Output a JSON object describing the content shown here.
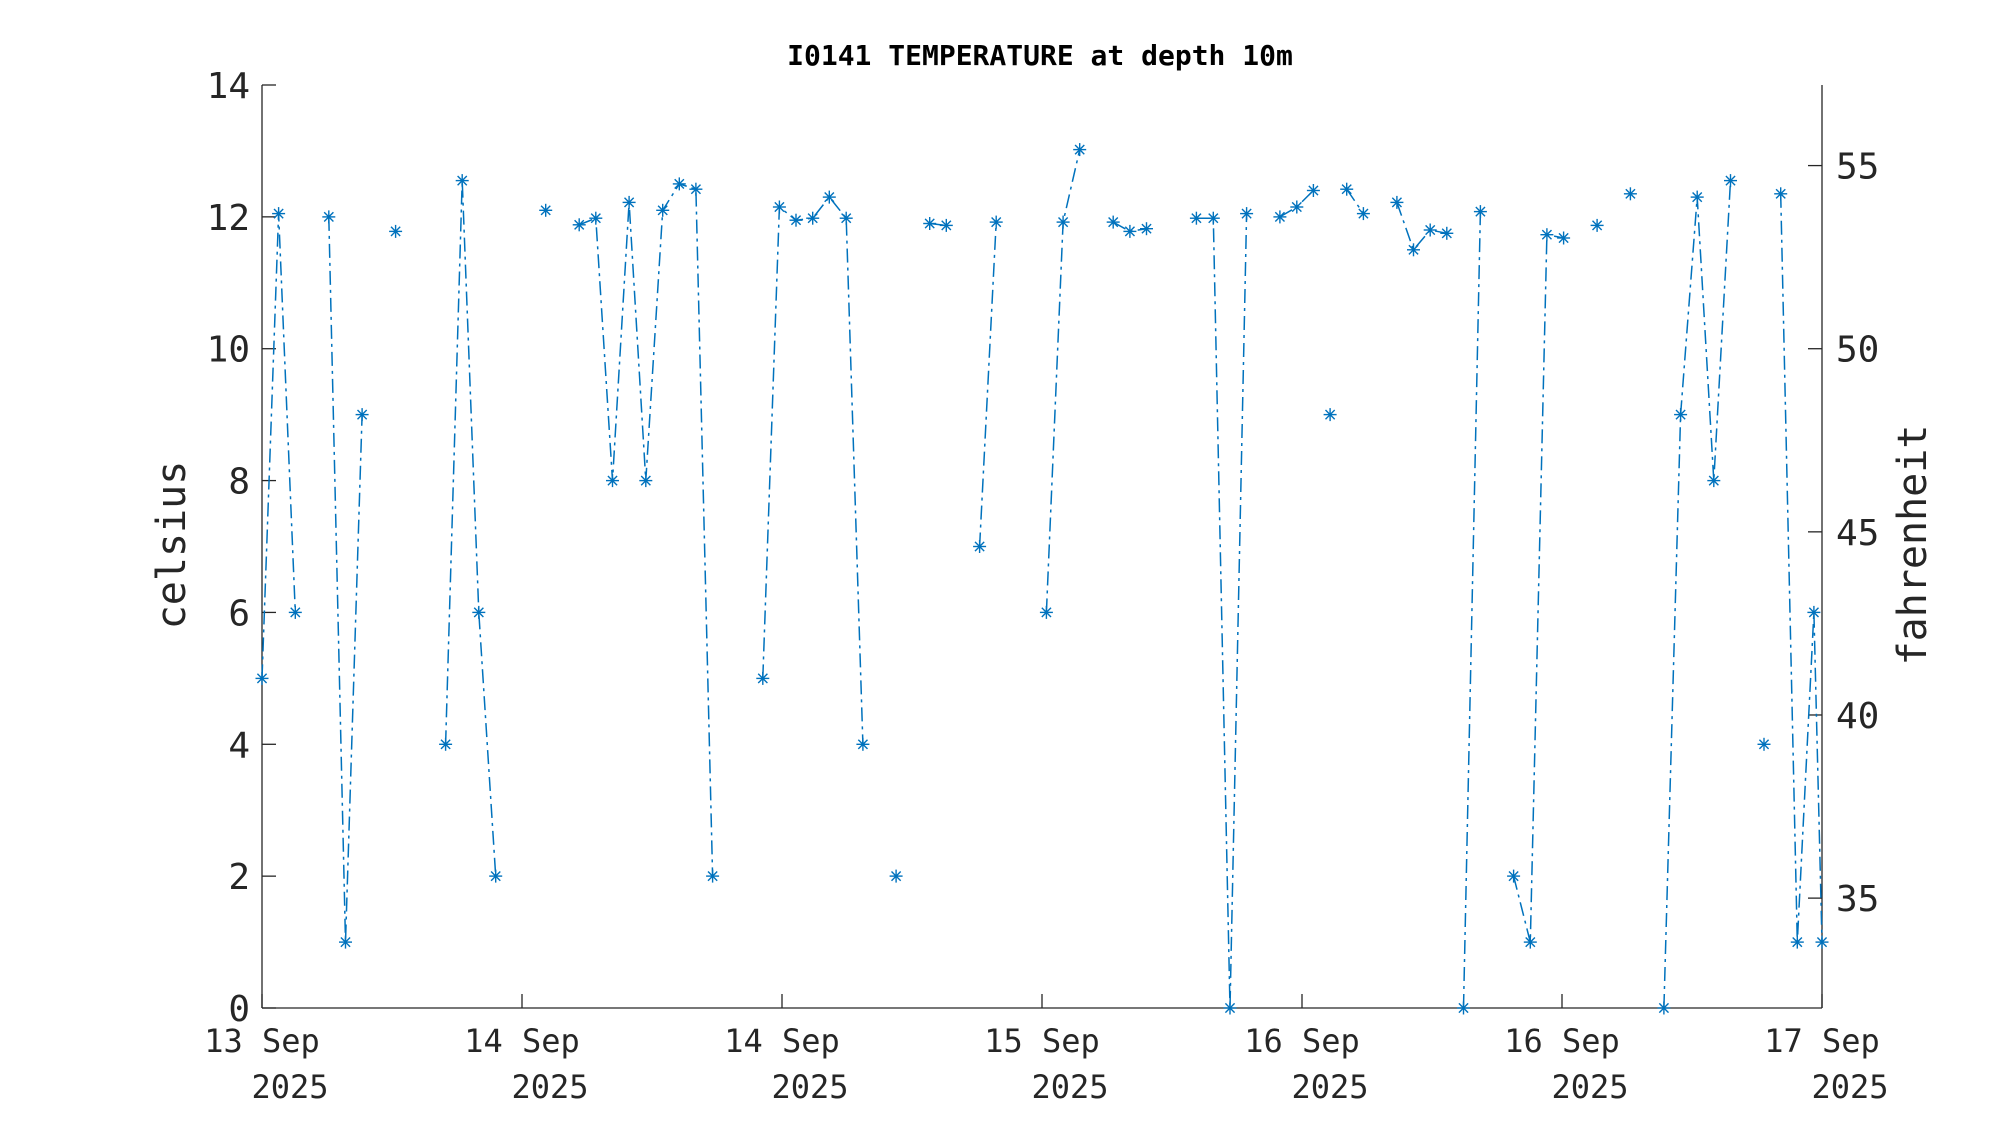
{
  "chart_data": {
    "type": "line",
    "title": "I0141 TEMPERATURE at depth 10m",
    "ylabel": "celsius",
    "y2label": "fahrenheit",
    "xlabel": "",
    "ylim": [
      0,
      14
    ],
    "y2lim": [
      32,
      57.2
    ],
    "yticks": [
      0,
      2,
      4,
      6,
      8,
      10,
      12,
      14
    ],
    "y2ticks": [
      35,
      40,
      45,
      50,
      55
    ],
    "xlim": [
      0,
      6
    ],
    "xticks": [
      {
        "x": 0,
        "line1": "13 Sep",
        "line2": "2025"
      },
      {
        "x": 1,
        "line1": "14 Sep",
        "line2": "2025"
      },
      {
        "x": 2,
        "line1": "14 Sep",
        "line2": "2025"
      },
      {
        "x": 3,
        "line1": "15 Sep",
        "line2": "2025"
      },
      {
        "x": 4,
        "line1": "16 Sep",
        "line2": "2025"
      },
      {
        "x": 5,
        "line1": "16 Sep",
        "line2": "2025"
      },
      {
        "x": 6,
        "line1": "17 Sep",
        "line2": "2025"
      }
    ],
    "line_style": "dash-dot",
    "marker": "asterisk",
    "color": "#0072BD",
    "grid": false,
    "segments": [
      [
        [
          0.0,
          5.0
        ],
        [
          0.064,
          12.05
        ],
        [
          0.128,
          6.0
        ]
      ],
      [
        [
          0.257,
          12.0
        ],
        [
          0.321,
          1.0
        ],
        [
          0.385,
          9.0
        ]
      ],
      [
        [
          0.514,
          11.78
        ]
      ],
      [
        [
          0.706,
          4.0
        ],
        [
          0.77,
          12.55
        ],
        [
          0.834,
          6.0
        ],
        [
          0.899,
          2.0
        ]
      ],
      [
        [
          1.091,
          12.1
        ]
      ],
      [
        [
          1.22,
          11.88
        ],
        [
          1.284,
          11.98
        ],
        [
          1.348,
          8.0
        ],
        [
          1.412,
          12.22
        ],
        [
          1.476,
          8.0
        ],
        [
          1.541,
          12.1
        ],
        [
          1.605,
          12.5
        ],
        [
          1.669,
          12.42
        ],
        [
          1.733,
          2.0
        ]
      ],
      [
        [
          1.926,
          5.0
        ],
        [
          1.99,
          12.15
        ],
        [
          2.054,
          11.95
        ],
        [
          2.118,
          11.98
        ],
        [
          2.182,
          12.3
        ],
        [
          2.247,
          11.98
        ],
        [
          2.311,
          4.0
        ]
      ],
      [
        [
          2.439,
          2.0
        ]
      ],
      [
        [
          2.568,
          11.9
        ],
        [
          2.632,
          11.87
        ]
      ],
      [
        [
          2.76,
          7.0
        ],
        [
          2.824,
          11.92
        ]
      ],
      [
        [
          3.017,
          6.0
        ],
        [
          3.081,
          11.92
        ],
        [
          3.145,
          13.02
        ]
      ],
      [
        [
          3.274,
          11.92
        ],
        [
          3.338,
          11.78
        ],
        [
          3.402,
          11.82
        ]
      ],
      [
        [
          3.594,
          11.98
        ],
        [
          3.659,
          11.98
        ],
        [
          3.723,
          0.0
        ],
        [
          3.787,
          12.05
        ]
      ],
      [
        [
          3.915,
          12.0
        ],
        [
          3.98,
          12.15
        ],
        [
          4.044,
          12.4
        ]
      ],
      [
        [
          4.108,
          9.0
        ]
      ],
      [
        [
          4.172,
          12.42
        ],
        [
          4.236,
          12.05
        ]
      ],
      [
        [
          4.365,
          12.22
        ],
        [
          4.429,
          11.5
        ],
        [
          4.493,
          11.8
        ],
        [
          4.557,
          11.75
        ]
      ],
      [
        [
          4.621,
          0.0
        ],
        [
          4.686,
          12.08
        ]
      ],
      [
        [
          4.814,
          2.0
        ],
        [
          4.878,
          1.0
        ],
        [
          4.942,
          11.73
        ],
        [
          5.006,
          11.68
        ]
      ],
      [
        [
          5.135,
          11.87
        ]
      ],
      [
        [
          5.263,
          12.35
        ]
      ],
      [
        [
          5.392,
          0.0
        ],
        [
          5.456,
          9.0
        ],
        [
          5.52,
          12.3
        ],
        [
          5.584,
          8.0
        ],
        [
          5.648,
          12.55
        ]
      ],
      [
        [
          5.777,
          4.0
        ]
      ],
      [
        [
          5.841,
          12.35
        ],
        [
          5.905,
          1.0
        ],
        [
          5.969,
          6.0
        ],
        [
          6.0,
          1.0
        ]
      ]
    ]
  }
}
